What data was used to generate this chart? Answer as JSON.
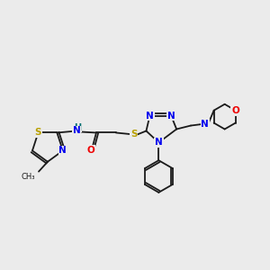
{
  "background_color": "#ebebeb",
  "bond_color": "#1a1a1a",
  "atom_colors": {
    "S": "#b8a000",
    "N": "#0000ee",
    "O": "#ee0000",
    "H": "#007070",
    "C": "#1a1a1a"
  },
  "figsize": [
    3.0,
    3.0
  ],
  "dpi": 100
}
